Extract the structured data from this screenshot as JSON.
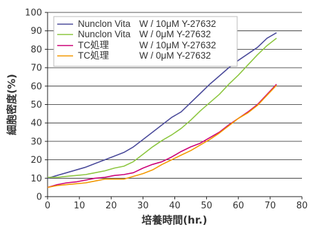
{
  "chart_data": {
    "type": "line",
    "title": "",
    "xlabel": "培養時間(hr.)",
    "ylabel": "細胞密度(%)",
    "xlim": [
      0,
      80
    ],
    "ylim": [
      0,
      100
    ],
    "x_ticks": [
      0,
      10,
      20,
      30,
      40,
      50,
      60,
      70,
      80
    ],
    "y_ticks": [
      0,
      10,
      20,
      30,
      40,
      50,
      60,
      70,
      80,
      90,
      100
    ],
    "grid": "horizontal",
    "legend_position": "top-left",
    "series": [
      {
        "name": "Nunclon Vita",
        "condition": "W / 10μM Y-27632",
        "color": "#4a4a9a",
        "x": [
          0,
          3,
          6,
          9,
          12,
          15,
          18,
          21,
          24,
          27,
          30,
          33,
          36,
          39,
          42,
          45,
          48,
          51,
          54,
          57,
          60,
          63,
          66,
          69,
          72
        ],
        "y": [
          10,
          11.5,
          13,
          14.5,
          16,
          18,
          20,
          22,
          24,
          27,
          31,
          35,
          39,
          43,
          46,
          51,
          56,
          61,
          65.5,
          70,
          74,
          77.5,
          81,
          86,
          89
        ]
      },
      {
        "name": "Nunclon Vita",
        "condition": "W / 0μM Y-27632",
        "color": "#8cc63f",
        "x": [
          0,
          3,
          6,
          9,
          12,
          15,
          18,
          21,
          24,
          27,
          30,
          33,
          36,
          39,
          42,
          45,
          48,
          51,
          54,
          57,
          60,
          63,
          66,
          69,
          72
        ],
        "y": [
          10.5,
          10.5,
          11,
          11.5,
          12,
          13,
          14,
          15.5,
          16.5,
          19,
          23,
          27,
          30.5,
          33.5,
          37,
          41.5,
          46.5,
          51,
          55.5,
          61,
          66,
          71.5,
          77,
          82,
          86
        ]
      },
      {
        "name": "TC処理",
        "condition": "W / 10μM Y-27632",
        "color": "#cc0077",
        "x": [
          0,
          3,
          6,
          9,
          12,
          15,
          18,
          21,
          24,
          27,
          30,
          33,
          36,
          39,
          42,
          45,
          48,
          51,
          54,
          57,
          60,
          63,
          66,
          69,
          72
        ],
        "y": [
          5,
          6.5,
          7.5,
          8,
          9,
          10,
          10.5,
          11.5,
          12,
          13,
          15.5,
          17.5,
          19,
          21.5,
          24.5,
          27,
          29,
          32,
          35,
          39,
          42.5,
          46,
          50,
          55.5,
          61
        ]
      },
      {
        "name": "TC処理",
        "condition": "W / 0μM Y-27632",
        "color": "#f39800",
        "x": [
          0,
          3,
          6,
          9,
          12,
          15,
          18,
          21,
          24,
          27,
          30,
          33,
          36,
          39,
          42,
          45,
          48,
          51,
          54,
          57,
          60,
          63,
          66,
          69,
          72
        ],
        "y": [
          5,
          6,
          6.5,
          7,
          7.5,
          8.5,
          9.5,
          9.5,
          9.5,
          11,
          12.5,
          14.5,
          17.5,
          20,
          22.5,
          25,
          28,
          31,
          34.5,
          38.5,
          42.5,
          45.5,
          49.5,
          55,
          60.5
        ]
      }
    ]
  }
}
